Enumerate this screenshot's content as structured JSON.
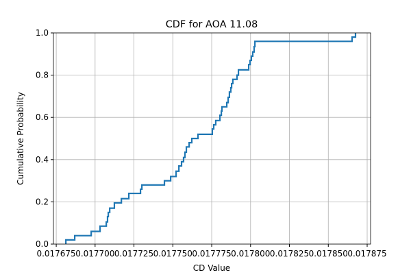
{
  "chart_data": {
    "type": "step",
    "title": "CDF for AOA 11.08",
    "x_label": "CD Value",
    "y_label": "Cumulative Probability",
    "series": [
      {
        "name": "CDF",
        "color": "#1f77b4",
        "x": [
          0.0176812,
          0.0176869,
          0.0176975,
          0.0177032,
          0.0177072,
          0.017708,
          0.0177085,
          0.0177094,
          0.0177124,
          0.0177169,
          0.0177217,
          0.0177292,
          0.0177301,
          0.0177446,
          0.0177486,
          0.0177521,
          0.0177539,
          0.0177556,
          0.0177569,
          0.0177578,
          0.0177587,
          0.0177605,
          0.0177622,
          0.0177662,
          0.0177754,
          0.0177763,
          0.0177776,
          0.0177803,
          0.0177812,
          0.0177816,
          0.0177847,
          0.0177856,
          0.0177864,
          0.0177873,
          0.0177878,
          0.0177886,
          0.0177913,
          0.0177922,
          0.0177988,
          0.0177997,
          0.0178005,
          0.0178014,
          0.0178023,
          0.0178028,
          0.0178653,
          0.0178675
        ],
        "values": [
          0.02,
          0.04,
          0.06,
          0.085,
          0.105,
          0.13,
          0.15,
          0.17,
          0.195,
          0.215,
          0.24,
          0.26,
          0.28,
          0.3,
          0.32,
          0.345,
          0.37,
          0.39,
          0.41,
          0.435,
          0.46,
          0.48,
          0.5,
          0.52,
          0.545,
          0.565,
          0.585,
          0.61,
          0.63,
          0.65,
          0.67,
          0.695,
          0.72,
          0.74,
          0.76,
          0.78,
          0.8,
          0.825,
          0.85,
          0.87,
          0.89,
          0.91,
          0.935,
          0.96,
          0.98,
          1.0
        ]
      }
    ],
    "xlim": [
      0.0176732,
      0.0178772
    ],
    "ylim": [
      0,
      1
    ],
    "xticks": [
      0.017675,
      {
        "value": 0.0177,
        "label": "0.017700"
      },
      0.017725,
      {
        "value": 0.01775,
        "label": "0.017750"
      },
      0.017775,
      {
        "value": 0.0178,
        "label": "0.017800"
      },
      0.017825,
      {
        "value": 0.01785,
        "label": "0.017850"
      },
      0.017875
    ],
    "yticks": [
      {
        "value": 0,
        "label": "0.0"
      },
      0.2,
      0.4,
      0.6,
      0.8,
      {
        "value": 1,
        "label": "1.0"
      }
    ],
    "grid": true
  }
}
